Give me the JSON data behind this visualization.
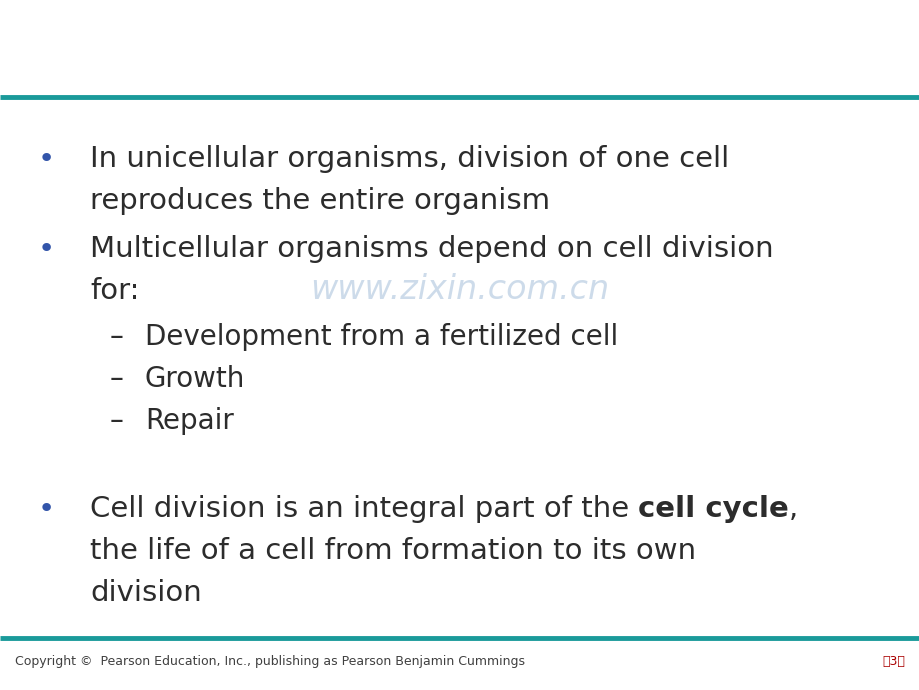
{
  "background_color": "#ffffff",
  "teal_line_color": "#1a9a9a",
  "bullet_color": "#3355aa",
  "text_color": "#2c2c2c",
  "watermark_color": "#c8d8e8",
  "footer_color": "#404040",
  "page_color": "#aa0000",
  "bullet_char": "•",
  "dash_char": "–",
  "bullet1_line1": "In unicellular organisms, division of one cell",
  "bullet1_line2": "reproduces the entire organism",
  "bullet2_line1": "Multicellular organisms depend on cell division",
  "bullet2_line2": "for:",
  "sub1": "Development from a fertilized cell",
  "sub2": "Growth",
  "sub3": "Repair",
  "bullet3_line1": "Cell division is an integral part of the ",
  "bullet3_bold": "cell cycle",
  "bullet3_after_bold": ",",
  "bullet3_line2": "the life of a cell from formation to its own",
  "bullet3_line3": "division",
  "watermark": "www.zixin.com.cn",
  "footer_text": "Copyright ©  Pearson Education, Inc., publishing as Pearson Benjamin Cummings",
  "page_text": "第3页",
  "main_fontsize": 21,
  "sub_fontsize": 20,
  "footer_fontsize": 9,
  "page_fontsize": 9,
  "watermark_fontsize": 24
}
